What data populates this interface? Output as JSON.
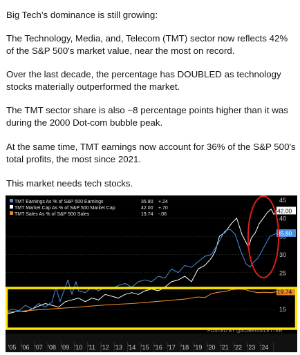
{
  "post": {
    "paragraphs": [
      "Big Tech’s dominance is still growing:",
      "The Technology, Media, and, Telecom (TMT) sector now reflects 42% of the S&P 500's market value, near the most on record.",
      "Over the last decade, the percentage has DOUBLED as technology stocks materially outperformed the market.",
      "The TMT sector share is also ~8 percentage points higher than it was during the 2000 Dot-com bubble peak.",
      "At the same time, TMT earnings now account for 36% of the S&P 500's total profits, the most since 2021.",
      "This market needs tech stocks."
    ]
  },
  "chart_data": {
    "type": "line",
    "x_ticks": [
      "'05",
      "'06",
      "'07",
      "'08",
      "'09",
      "'10",
      "'11",
      "'12",
      "'13",
      "'14",
      "'15",
      "'16",
      "'17",
      "'18",
      "'19",
      "'20",
      "'21",
      "'22",
      "'23",
      "'24"
    ],
    "x_range": [
      2004.5,
      2024.9
    ],
    "y_ticks": [
      15,
      20,
      25,
      30,
      35,
      40,
      45
    ],
    "ylim": [
      10.5,
      45.5
    ],
    "watermark": "POSTED BY @KOBEISSILETTER",
    "legend": [
      {
        "label": "TMT Earnings As % of S&P 500 Earnings",
        "last": "35.80",
        "change": "+.24",
        "color": "#4a90e2"
      },
      {
        "label": "TMT Market Cap As % of S&P 500 Market Cap",
        "last": "42.00",
        "change": "+.70",
        "color": "#ffffff"
      },
      {
        "label": "TMT Sales As % of S&P 500 Sales",
        "last": "19.74",
        "change": "-.06",
        "color": "#e8892c"
      }
    ],
    "end_labels": {
      "market_cap": "42.00",
      "earnings": "35.80",
      "sales": "19.74"
    },
    "series": [
      {
        "name": "TMT Market Cap As % of S&P 500 Market Cap",
        "color": "#ffffff",
        "x": [
          2004.5,
          2005,
          2005.5,
          2006,
          2006.5,
          2007,
          2007.5,
          2008,
          2008.5,
          2009,
          2009.5,
          2010,
          2010.5,
          2011,
          2011.5,
          2012,
          2012.5,
          2013,
          2013.5,
          2014,
          2014.5,
          2015,
          2015.5,
          2016,
          2016.5,
          2017,
          2017.5,
          2018,
          2018.5,
          2019,
          2019.5,
          2020,
          2020.3,
          2020.6,
          2021,
          2021.5,
          2021.9,
          2022.3,
          2022.8,
          2023,
          2023.3,
          2023.6,
          2023.9,
          2024.2,
          2024.5,
          2024.7,
          2024.9
        ],
        "y": [
          13.5,
          14,
          14.5,
          14.2,
          15,
          15.8,
          16.5,
          16,
          15.5,
          17,
          17.5,
          18,
          17,
          18,
          17.5,
          19,
          18.5,
          18,
          19,
          19.5,
          19,
          20,
          20.5,
          20,
          21,
          22.5,
          23,
          24,
          22.5,
          26,
          27,
          29,
          31,
          35,
          36,
          38.5,
          40,
          35.5,
          32,
          34.5,
          36,
          38.5,
          40,
          41.5,
          42.5,
          41,
          42
        ]
      },
      {
        "name": "TMT Earnings As % of S&P 500 Earnings",
        "color": "#4a90e2",
        "x": [
          2004.5,
          2005,
          2005.5,
          2006,
          2006.5,
          2007,
          2007.5,
          2008,
          2008.3,
          2008.6,
          2008.9,
          2009.2,
          2009.5,
          2009.8,
          2010,
          2010.5,
          2011,
          2011.5,
          2012,
          2012.5,
          2013,
          2013.5,
          2014,
          2014.5,
          2015,
          2015.5,
          2016,
          2016.5,
          2017,
          2017.5,
          2018,
          2018.5,
          2019,
          2019.5,
          2020,
          2020.5,
          2021,
          2021.4,
          2021.8,
          2022.2,
          2022.6,
          2022.9,
          2023.2,
          2023.5,
          2023.8,
          2024.1,
          2024.4,
          2024.7,
          2024.9
        ],
        "y": [
          14,
          15,
          14.5,
          16,
          15,
          16.5,
          15.5,
          17,
          21,
          17,
          20,
          23,
          19,
          22.5,
          20,
          19.5,
          21,
          20,
          21,
          20.5,
          21.5,
          22,
          21,
          22.5,
          23,
          22.5,
          24,
          23.5,
          26,
          25,
          27,
          26.5,
          28,
          29.5,
          30,
          33,
          36.5,
          37,
          35.5,
          31,
          27.5,
          26.5,
          28,
          29,
          31,
          33,
          35,
          35.5,
          35.8
        ]
      },
      {
        "name": "TMT Sales As % of S&P 500 Sales",
        "color": "#e8892c",
        "x": [
          2004.5,
          2005,
          2006,
          2007,
          2008,
          2009,
          2010,
          2011,
          2012,
          2013,
          2014,
          2015,
          2016,
          2017,
          2018,
          2019,
          2019.5,
          2020,
          2020.5,
          2021,
          2021.5,
          2022,
          2022.5,
          2023,
          2023.5,
          2024,
          2024.5,
          2024.9
        ],
        "y": [
          14,
          14.2,
          14.5,
          14.8,
          15,
          15.3,
          15.5,
          15.8,
          16.1,
          16.3,
          16.5,
          16.8,
          17.1,
          17.4,
          17.7,
          18.3,
          18.1,
          19.2,
          19.6,
          19.8,
          20.3,
          20.5,
          20.4,
          19.8,
          19.5,
          19.6,
          19.5,
          19.74
        ]
      }
    ]
  },
  "annotations": {
    "red_circle_color": "#d42020",
    "yellow_box_color": "#ffe600"
  }
}
